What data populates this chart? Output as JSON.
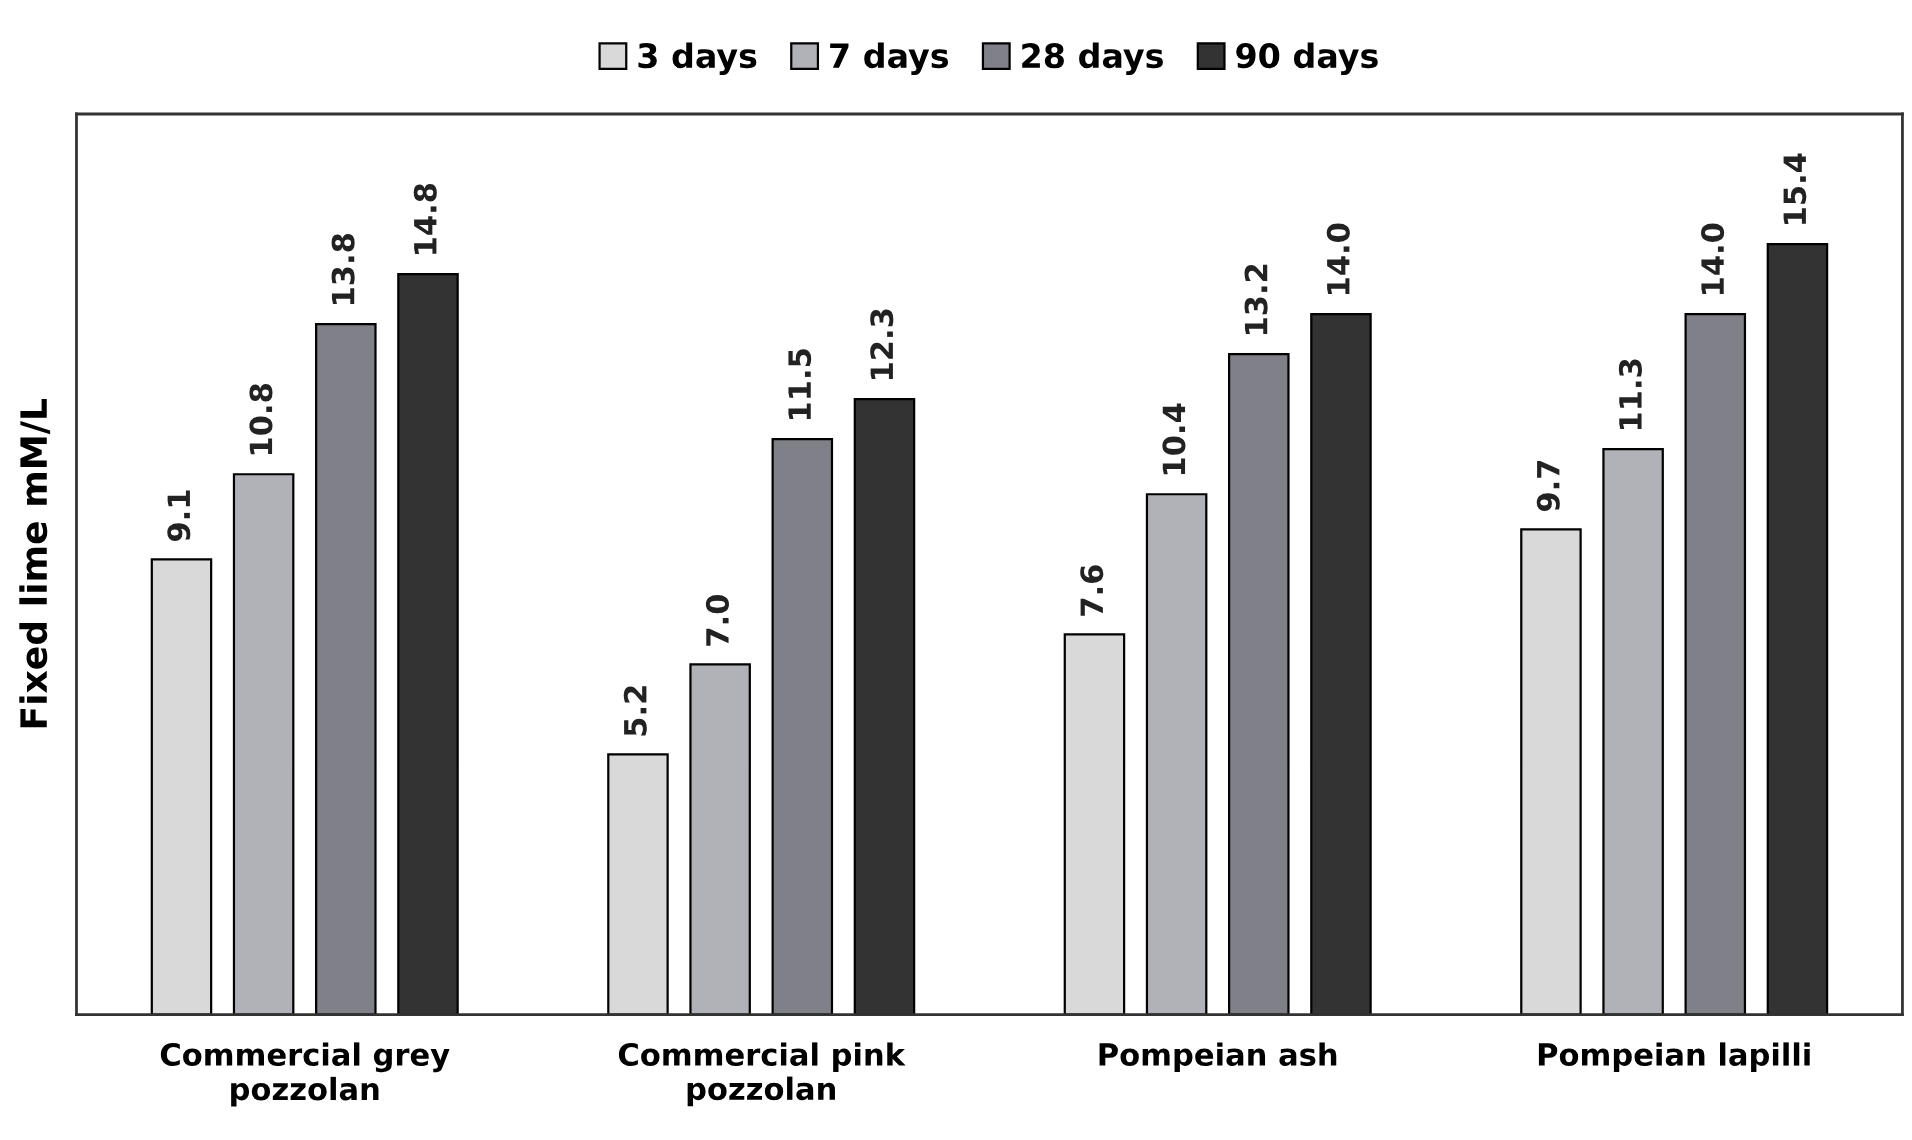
{
  "chart_data": {
    "type": "bar",
    "ylabel": "Fixed lime mM/L",
    "categories": [
      "Commercial grey\npozzolan",
      "Commercial pink\npozzolan",
      "Pompeian ash",
      "Pompeian lapilli"
    ],
    "series": [
      {
        "name": "3 days",
        "color": "#d9d9d9",
        "values": [
          9.1,
          5.2,
          7.6,
          9.7
        ],
        "value_labels": [
          "9.1",
          "5.2",
          "7.6",
          "9.7"
        ]
      },
      {
        "name": "7 days",
        "color": "#b1b1b8",
        "values": [
          10.8,
          7.0,
          10.4,
          11.3
        ],
        "value_labels": [
          "10.8",
          "7.0",
          "10.4",
          "11.3"
        ]
      },
      {
        "name": "28 days",
        "color": "#808088",
        "values": [
          13.8,
          11.5,
          13.2,
          14.0
        ],
        "value_labels": [
          "13.8",
          "11.5",
          "13.2",
          "14.0"
        ]
      },
      {
        "name": "90 days",
        "color": "#333333",
        "values": [
          14.8,
          12.3,
          14.0,
          15.4
        ],
        "value_labels": [
          "14.8",
          "12.3",
          "14.0",
          "15.4"
        ]
      }
    ],
    "ylim": [
      0,
      18
    ],
    "legend": "top",
    "tick_labels": "x",
    "grid": false
  }
}
